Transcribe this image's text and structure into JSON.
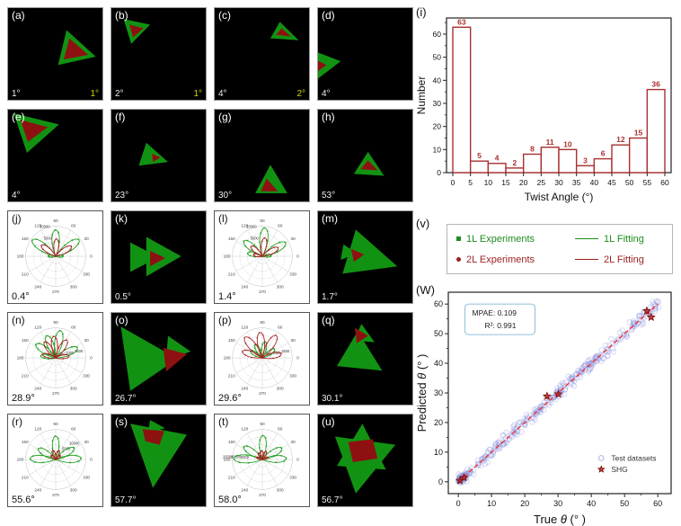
{
  "colors": {
    "green": "#129212",
    "red": "#8e1111",
    "polar_green": "#22a022",
    "polar_red": "#aa2222",
    "hist_bar": "#a93030",
    "scatter_cloud": "#8890dd",
    "fit_line": "#ee3333",
    "star": "#b41f1f",
    "yellow": "#d6d000"
  },
  "polar_angle_ticks": [
    "0",
    "30",
    "60",
    "90",
    "120",
    "150",
    "180",
    "210",
    "240",
    "270",
    "300",
    "330"
  ],
  "panels": [
    {
      "id": "a",
      "type": "image",
      "letter": "(a)",
      "label_bl": "1°",
      "label_br": "1°",
      "polys": [
        {
          "c": "green",
          "pts": [
            [
              62,
              24
            ],
            [
              93,
              53
            ],
            [
              53,
              62
            ]
          ]
        },
        {
          "c": "red",
          "pts": [
            [
              65,
              33
            ],
            [
              85,
              51
            ],
            [
              59,
              56
            ]
          ]
        }
      ]
    },
    {
      "id": "b",
      "type": "image",
      "letter": "(b)",
      "label_bl": "2°",
      "label_br": "1°",
      "polys": [
        {
          "c": "green",
          "pts": [
            [
              13,
              12
            ],
            [
              41,
              18
            ],
            [
              21,
              39
            ]
          ]
        },
        {
          "c": "red",
          "pts": [
            [
              19,
              18
            ],
            [
              34,
              22
            ],
            [
              23,
              32
            ]
          ]
        }
      ]
    },
    {
      "id": "c",
      "type": "image",
      "letter": "(c)",
      "label_bl": "4°",
      "label_br": "2°",
      "polys": [
        {
          "c": "green",
          "pts": [
            [
              69,
              15
            ],
            [
              89,
              35
            ],
            [
              59,
              33
            ]
          ]
        },
        {
          "c": "red",
          "pts": [
            [
              71,
              22
            ],
            [
              81,
              31
            ],
            [
              65,
              29
            ]
          ]
        }
      ]
    },
    {
      "id": "d",
      "type": "image",
      "letter": "(d)",
      "label_bl": "4°",
      "label_br": null,
      "polys": [
        {
          "c": "green",
          "pts": [
            [
              -6,
              46
            ],
            [
              24,
              58
            ],
            [
              -4,
              80
            ]
          ]
        },
        {
          "c": "red",
          "pts": [
            [
              -5,
              55
            ],
            [
              9,
              62
            ],
            [
              -3,
              71
            ]
          ]
        }
      ]
    },
    {
      "id": "e",
      "type": "image",
      "letter": "(e)",
      "label_bl": "4°",
      "label_br": null,
      "polys": [
        {
          "c": "green",
          "pts": [
            [
              6,
              4
            ],
            [
              54,
              16
            ],
            [
              20,
              47
            ]
          ]
        },
        {
          "c": "red",
          "pts": [
            [
              13,
              11
            ],
            [
              42,
              19
            ],
            [
              21,
              35
            ]
          ]
        }
      ]
    },
    {
      "id": "f",
      "type": "image",
      "letter": "(f)",
      "label_bl": "23°",
      "label_br": null,
      "polys": [
        {
          "c": "green",
          "pts": [
            [
              37,
              36
            ],
            [
              60,
              57
            ],
            [
              29,
              61
            ]
          ]
        },
        {
          "c": "red",
          "pts": [
            [
              43,
              48
            ],
            [
              52,
              52
            ],
            [
              44,
              57
            ]
          ]
        }
      ]
    },
    {
      "id": "g",
      "type": "image",
      "letter": "(g)",
      "label_bl": "30°",
      "label_br": null,
      "polys": [
        {
          "c": "green",
          "pts": [
            [
              59,
              60
            ],
            [
              77,
              91
            ],
            [
              43,
              91
            ]
          ]
        },
        {
          "c": "red",
          "pts": [
            [
              55,
              75
            ],
            [
              67,
              89
            ],
            [
              49,
              89
            ]
          ]
        }
      ]
    },
    {
      "id": "h",
      "type": "image",
      "letter": "(h)",
      "label_bl": "53°",
      "label_br": null,
      "polys": [
        {
          "c": "green",
          "pts": [
            [
              53,
              46
            ],
            [
              70,
              72
            ],
            [
              38,
              70
            ]
          ]
        },
        {
          "c": "red",
          "pts": [
            [
              53,
              55
            ],
            [
              63,
              66
            ],
            [
              45,
              65
            ]
          ]
        }
      ]
    },
    {
      "id": "j",
      "type": "polar",
      "letter": "(j)",
      "label_bl": "0.4°",
      "radial_labels": [
        "10000",
        "5000"
      ],
      "rangle": 100,
      "rfracs": [
        0.95,
        0.55
      ],
      "green": [
        {
          "a": 35,
          "l": 0.95
        },
        {
          "a": 90,
          "l": 0.88
        },
        {
          "a": 145,
          "l": 0.95
        },
        {
          "a": 178,
          "l": 0.25
        },
        {
          "a": 2,
          "l": 0.25
        }
      ],
      "red": [
        {
          "a": 32,
          "l": 0.62
        },
        {
          "a": 87,
          "l": 0.58
        },
        {
          "a": 142,
          "l": 0.6
        }
      ]
    },
    {
      "id": "k",
      "type": "image",
      "letter": "(k)",
      "label_bl": "0.5°",
      "label_br": null,
      "polys": [
        {
          "c": "green",
          "pts": [
            [
              37,
              28
            ],
            [
              74,
              49
            ],
            [
              37,
              71
            ]
          ]
        },
        {
          "c": "green",
          "pts": [
            [
              20,
              34
            ],
            [
              50,
              50
            ],
            [
              20,
              66
            ]
          ]
        },
        {
          "c": "red",
          "pts": [
            [
              41,
              43
            ],
            [
              57,
              51
            ],
            [
              41,
              60
            ]
          ]
        }
      ]
    },
    {
      "id": "l",
      "type": "polar",
      "letter": "(l)",
      "label_bl": "1.4°",
      "radial_labels": [
        "10000",
        "5000"
      ],
      "rangle": 100,
      "rfracs": [
        0.95,
        0.55
      ],
      "green": [
        {
          "a": 30,
          "l": 0.9
        },
        {
          "a": 85,
          "l": 0.95
        },
        {
          "a": 140,
          "l": 0.8
        },
        {
          "a": 168,
          "l": 0.5
        },
        {
          "a": 5,
          "l": 0.3
        }
      ],
      "red": [
        {
          "a": 28,
          "l": 0.6
        },
        {
          "a": 82,
          "l": 0.62
        },
        {
          "a": 138,
          "l": 0.5
        },
        {
          "a": 170,
          "l": 0.3
        }
      ]
    },
    {
      "id": "m",
      "type": "image",
      "letter": "(m)",
      "label_bl": "1.7°",
      "label_br": null,
      "polys": [
        {
          "c": "green",
          "pts": [
            [
              40,
              20
            ],
            [
              84,
              60
            ],
            [
              26,
              68
            ]
          ]
        },
        {
          "c": "green",
          "pts": [
            [
              27,
              36
            ],
            [
              41,
              46
            ],
            [
              24,
              53
            ]
          ]
        },
        {
          "c": "red",
          "pts": [
            [
              35,
              41
            ],
            [
              49,
              47
            ],
            [
              38,
              55
            ]
          ]
        }
      ]
    },
    {
      "id": "n",
      "type": "polar",
      "letter": "(n)",
      "label_bl": "28.9°",
      "radial_labels": [
        "1500",
        "1000",
        "500"
      ],
      "rangle": 10,
      "rfracs": [
        0.95,
        0.65,
        0.35
      ],
      "green": [
        {
          "a": 25,
          "l": 0.8
        },
        {
          "a": 80,
          "l": 0.92
        },
        {
          "a": 112,
          "l": 0.8
        },
        {
          "a": 145,
          "l": 0.8
        },
        {
          "a": 172,
          "l": 0.5
        }
      ],
      "red": [
        {
          "a": 8,
          "l": 0.45
        },
        {
          "a": 58,
          "l": 0.7
        },
        {
          "a": 95,
          "l": 0.72
        },
        {
          "a": 125,
          "l": 0.65
        },
        {
          "a": 165,
          "l": 0.45
        }
      ]
    },
    {
      "id": "o",
      "type": "image",
      "letter": "(o)",
      "label_bl": "26.7°",
      "label_br": null,
      "polys": [
        {
          "c": "green",
          "pts": [
            [
              10,
              15
            ],
            [
              70,
              50
            ],
            [
              20,
              85
            ]
          ]
        },
        {
          "c": "green",
          "pts": [
            [
              60,
              25
            ],
            [
              84,
              42
            ],
            [
              58,
              52
            ]
          ]
        },
        {
          "c": "red",
          "pts": [
            [
              55,
              38
            ],
            [
              80,
              45
            ],
            [
              58,
              64
            ]
          ]
        }
      ]
    },
    {
      "id": "p",
      "type": "polar",
      "letter": "(p)",
      "label_bl": "29.6°",
      "radial_labels": [
        "1500",
        "1000",
        "500"
      ],
      "rangle": 10,
      "rfracs": [
        0.95,
        0.65,
        0.35
      ],
      "green": [
        {
          "a": 35,
          "l": 0.5
        },
        {
          "a": 80,
          "l": 0.55
        },
        {
          "a": 118,
          "l": 0.5
        },
        {
          "a": 150,
          "l": 0.45
        }
      ],
      "red": [
        {
          "a": 12,
          "l": 0.65
        },
        {
          "a": 58,
          "l": 0.88
        },
        {
          "a": 95,
          "l": 0.85
        },
        {
          "a": 130,
          "l": 0.9
        },
        {
          "a": 162,
          "l": 0.7
        }
      ]
    },
    {
      "id": "q",
      "type": "image",
      "letter": "(q)",
      "label_bl": "30.1°",
      "label_br": null,
      "polys": [
        {
          "c": "green",
          "pts": [
            [
              42,
              20
            ],
            [
              68,
              63
            ],
            [
              20,
              58
            ]
          ]
        },
        {
          "c": "green",
          "pts": [
            [
              46,
              12
            ],
            [
              60,
              32
            ],
            [
              38,
              30
            ]
          ]
        },
        {
          "c": "red",
          "pts": [
            [
              39,
              16
            ],
            [
              53,
              25
            ],
            [
              41,
              33
            ]
          ]
        }
      ]
    },
    {
      "id": "r",
      "type": "polar",
      "letter": "(r)",
      "label_bl": "55.6°",
      "radial_labels": [
        "10000",
        "5000"
      ],
      "rangle": 30,
      "rfracs": [
        0.95,
        0.6
      ],
      "green": [
        {
          "a": 2,
          "l": 0.85
        },
        {
          "a": 32,
          "l": 0.72
        },
        {
          "a": 90,
          "l": 0.78
        },
        {
          "a": 148,
          "l": 0.68
        },
        {
          "a": 178,
          "l": 0.85
        }
      ],
      "red": [
        {
          "a": 70,
          "l": 0.32
        },
        {
          "a": 108,
          "l": 0.32
        },
        {
          "a": 40,
          "l": 0.2
        },
        {
          "a": 140,
          "l": 0.2
        }
      ]
    },
    {
      "id": "s",
      "type": "image",
      "letter": "(s)",
      "label_bl": "57.7°",
      "label_br": null,
      "polys": [
        {
          "c": "green",
          "pts": [
            [
              20,
              10
            ],
            [
              80,
              22
            ],
            [
              44,
              80
            ]
          ]
        },
        {
          "c": "green",
          "pts": [
            [
              41,
              6
            ],
            [
              57,
              15
            ],
            [
              39,
              19
            ]
          ]
        },
        {
          "c": "red",
          "pts": [
            [
              33,
              16
            ],
            [
              56,
              18
            ],
            [
              51,
              33
            ],
            [
              36,
              29
            ]
          ]
        }
      ]
    },
    {
      "id": "t",
      "type": "polar",
      "letter": "(t)",
      "label_bl": "58.0°",
      "radial_labels": [
        "15000",
        "10000",
        "5000"
      ],
      "rangle": 178,
      "rfracs": [
        0.95,
        0.68,
        0.42
      ],
      "green": [
        {
          "a": 2,
          "l": 0.8
        },
        {
          "a": 30,
          "l": 0.75
        },
        {
          "a": 88,
          "l": 0.8
        },
        {
          "a": 145,
          "l": 0.75
        },
        {
          "a": 178,
          "l": 0.95
        }
      ],
      "red": [
        {
          "a": 65,
          "l": 0.3
        },
        {
          "a": 95,
          "l": 0.3
        },
        {
          "a": 120,
          "l": 0.25
        },
        {
          "a": 160,
          "l": 0.2
        },
        {
          "a": 20,
          "l": 0.2
        }
      ]
    },
    {
      "id": "u",
      "type": "image",
      "letter": "(u)",
      "label_bl": "56.7°",
      "label_br": null,
      "polys": [
        {
          "c": "green",
          "pts": [
            [
              18,
              24
            ],
            [
              82,
              33
            ],
            [
              40,
              86
            ]
          ]
        },
        {
          "c": "green",
          "pts": [
            [
              47,
              10
            ],
            [
              72,
              60
            ],
            [
              20,
              56
            ]
          ]
        },
        {
          "c": "red",
          "pts": [
            [
              32,
              30
            ],
            [
              58,
              27
            ],
            [
              63,
              48
            ],
            [
              37,
              52
            ]
          ]
        }
      ]
    }
  ],
  "legend_v": {
    "letter": "(v)",
    "items": [
      {
        "label": "1L Experiments",
        "marker": "green-square"
      },
      {
        "label": "1L Fitting",
        "marker": "green-line"
      },
      {
        "label": "2L Experiments",
        "marker": "red-dot"
      },
      {
        "label": "2L Fitting",
        "marker": "red-line"
      }
    ]
  },
  "chart_data": [
    {
      "type": "bar",
      "letter": "(i)",
      "title": "",
      "xlabel": "Twist Angle (°)",
      "ylabel": "Number",
      "bin_edges": [
        0,
        5,
        10,
        15,
        20,
        25,
        30,
        35,
        40,
        45,
        50,
        55,
        60
      ],
      "values": [
        63,
        5,
        4,
        2,
        8,
        11,
        10,
        3,
        6,
        12,
        15,
        36
      ],
      "xticks": [
        0,
        5,
        10,
        15,
        20,
        25,
        30,
        35,
        40,
        45,
        50,
        55,
        60
      ],
      "yticks": [
        0,
        10,
        20,
        30,
        40,
        50,
        60
      ],
      "ylim": [
        0,
        67
      ],
      "bar_fill": "#ffffff",
      "bar_stroke": "#a93030",
      "grid": false,
      "value_labels": [
        "63",
        "5",
        "4",
        "2",
        "8",
        "11",
        "10",
        "3",
        "6",
        "12",
        "15",
        "36"
      ]
    },
    {
      "type": "scatter",
      "letter": "(W)",
      "title": "",
      "xlabel_parts": {
        "prefix": "True ",
        "sym": "θ",
        "suffix": " (° )"
      },
      "ylabel_parts": {
        "prefix": "Predicted ",
        "sym": "θ",
        "suffix": " (° )"
      },
      "xticks": [
        0,
        10,
        20,
        30,
        40,
        50,
        60
      ],
      "yticks": [
        0,
        10,
        20,
        30,
        40,
        50,
        60
      ],
      "xlim": [
        -3,
        64
      ],
      "ylim": [
        -4,
        64
      ],
      "annotation": {
        "line1": "MPAE: 0.109",
        "line2": "R²: 0.991"
      },
      "fit_line": {
        "from": [
          0,
          0
        ],
        "to": [
          60,
          60
        ],
        "style": "dashed",
        "color": "#ee3333"
      },
      "test_datasets": {
        "marker": "open-circle",
        "color": "#8890dd",
        "n_points": "~400",
        "distribution": "spread along y = x from 0° to 60°"
      },
      "shg_points": [
        [
          0.5,
          0.4
        ],
        [
          1.7,
          1.4
        ],
        [
          26.7,
          28.9
        ],
        [
          30.1,
          29.6
        ],
        [
          56.7,
          57.7
        ],
        [
          58.0,
          55.6
        ]
      ],
      "legend": [
        {
          "label": "Test datasets",
          "marker": "open-circle"
        },
        {
          "label": "SHG",
          "marker": "star"
        }
      ]
    }
  ]
}
